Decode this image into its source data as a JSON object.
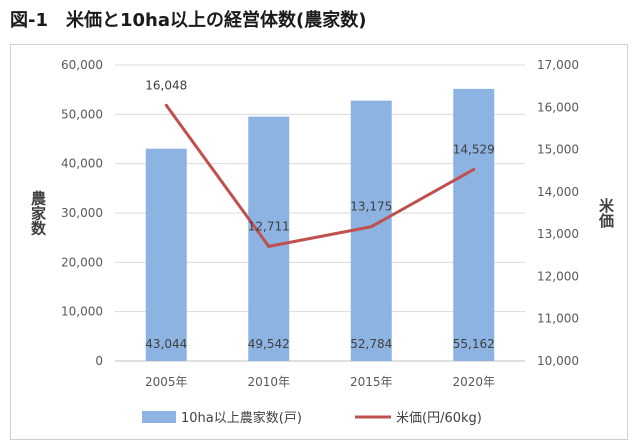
{
  "title": "図-1　米価と10ha以上の経営体数(農家数)",
  "chart_data": {
    "type": "bar+line",
    "categories": [
      "2005年",
      "2010年",
      "2015年",
      "2020年"
    ],
    "series": [
      {
        "name": "10ha以上農家数(戸)",
        "type": "bar",
        "axis": "left",
        "color": "#8db3e2",
        "values": [
          43044,
          49542,
          52784,
          55162
        ],
        "labels": [
          "43,044",
          "49,542",
          "52,784",
          "55,162"
        ]
      },
      {
        "name": "米価(円/60kg)",
        "type": "line",
        "axis": "right",
        "color": "#c0504d",
        "values": [
          16048,
          12711,
          13175,
          14529
        ],
        "labels": [
          "16,048",
          "12,711",
          "13,175",
          "14,529"
        ]
      }
    ],
    "left_axis": {
      "label": "農家数",
      "ylim": [
        0,
        60000
      ],
      "ticks": [
        0,
        10000,
        20000,
        30000,
        40000,
        50000,
        60000
      ],
      "tick_labels": [
        "0",
        "10,000",
        "20,000",
        "30,000",
        "40,000",
        "50,000",
        "60,000"
      ]
    },
    "right_axis": {
      "label": "米価",
      "ylim": [
        10000,
        17000
      ],
      "ticks": [
        10000,
        11000,
        12000,
        13000,
        14000,
        15000,
        16000,
        17000
      ],
      "tick_labels": [
        "10,000",
        "11,000",
        "12,000",
        "13,000",
        "14,000",
        "15,000",
        "16,000",
        "17,000"
      ]
    },
    "grid": true,
    "legend": "bottom"
  }
}
